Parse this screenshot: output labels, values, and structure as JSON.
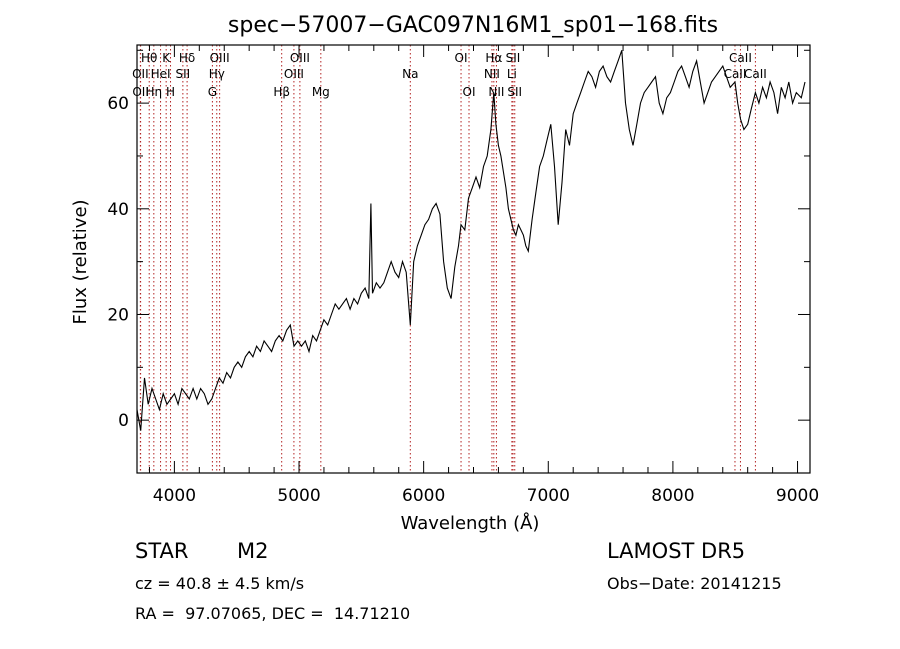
{
  "chart_data": {
    "type": "line",
    "title": "spec−57007−GAC097N16M1_sp01−168.fits",
    "xlabel": "Wavelength (Å)",
    "ylabel": "Flux (relative)",
    "xlim": [
      3700,
      9100
    ],
    "ylim": [
      -10,
      71
    ],
    "xticks": [
      4000,
      5000,
      6000,
      7000,
      8000,
      9000
    ],
    "yticks": [
      0,
      20,
      40,
      60
    ],
    "grid": false,
    "line_color": "#000000",
    "marker_color": "#b22222",
    "series": [
      {
        "x": [
          3700,
          3730,
          3760,
          3790,
          3820,
          3850,
          3880,
          3910,
          3940,
          3970,
          4000,
          4030,
          4060,
          4090,
          4120,
          4150,
          4180,
          4210,
          4240,
          4270,
          4300,
          4330,
          4360,
          4390,
          4420,
          4450,
          4480,
          4510,
          4540,
          4570,
          4600,
          4630,
          4660,
          4690,
          4720,
          4750,
          4780,
          4810,
          4840,
          4870,
          4900,
          4930,
          4960,
          4990,
          5020,
          5050,
          5080,
          5110,
          5140,
          5170,
          5200,
          5230,
          5260,
          5290,
          5320,
          5350,
          5380,
          5410,
          5440,
          5470,
          5500,
          5530,
          5560,
          5577,
          5590,
          5620,
          5650,
          5680,
          5710,
          5740,
          5770,
          5800,
          5830,
          5860,
          5893,
          5920,
          5950,
          5980,
          6010,
          6040,
          6070,
          6100,
          6130,
          6160,
          6190,
          6220,
          6250,
          6280,
          6300,
          6330,
          6360,
          6390,
          6420,
          6450,
          6480,
          6510,
          6540,
          6563,
          6580,
          6600,
          6620,
          6640,
          6660,
          6680,
          6700,
          6720,
          6740,
          6760,
          6780,
          6800,
          6820,
          6840,
          6870,
          6900,
          6930,
          6960,
          6990,
          7020,
          7050,
          7080,
          7110,
          7140,
          7170,
          7200,
          7230,
          7260,
          7290,
          7320,
          7350,
          7380,
          7410,
          7440,
          7470,
          7500,
          7530,
          7560,
          7590,
          7620,
          7650,
          7680,
          7710,
          7740,
          7770,
          7800,
          7830,
          7860,
          7890,
          7920,
          7950,
          7980,
          8010,
          8040,
          8070,
          8100,
          8130,
          8160,
          8190,
          8220,
          8250,
          8280,
          8310,
          8340,
          8370,
          8400,
          8430,
          8460,
          8498,
          8520,
          8542,
          8570,
          8600,
          8630,
          8662,
          8690,
          8720,
          8750,
          8780,
          8810,
          8840,
          8870,
          8900,
          8930,
          8960,
          8990,
          9030,
          9060
        ],
        "y": [
          2,
          -2,
          8,
          3,
          6,
          4,
          2,
          5,
          3,
          4,
          5,
          3,
          6,
          5,
          4,
          6,
          4,
          6,
          5,
          3,
          4,
          6,
          8,
          7,
          9,
          8,
          10,
          11,
          10,
          12,
          13,
          12,
          14,
          13,
          15,
          14,
          13,
          15,
          16,
          15,
          17,
          18,
          14,
          15,
          14,
          15,
          13,
          16,
          15,
          17,
          19,
          18,
          20,
          22,
          21,
          22,
          23,
          21,
          23,
          22,
          24,
          25,
          23,
          41,
          24,
          26,
          25,
          26,
          28,
          30,
          28,
          27,
          30,
          28,
          18,
          30,
          33,
          35,
          37,
          38,
          40,
          41,
          39,
          30,
          25,
          23,
          29,
          33,
          37,
          36,
          42,
          44,
          46,
          44,
          48,
          50,
          55,
          62,
          56,
          52,
          50,
          47,
          44,
          40,
          38,
          36,
          35,
          37,
          36,
          35,
          33,
          32,
          38,
          43,
          48,
          50,
          53,
          56,
          48,
          37,
          45,
          55,
          52,
          58,
          60,
          62,
          64,
          66,
          65,
          63,
          66,
          67,
          65,
          64,
          66,
          68,
          70,
          60,
          55,
          52,
          56,
          60,
          62,
          63,
          64,
          65,
          60,
          58,
          61,
          62,
          64,
          66,
          67,
          65,
          63,
          66,
          68,
          64,
          60,
          62,
          64,
          65,
          66,
          67,
          65,
          63,
          64,
          60,
          57,
          55,
          56,
          59,
          62,
          60,
          63,
          61,
          64,
          62,
          58,
          63,
          61,
          64,
          60,
          62,
          61,
          64
        ]
      }
    ],
    "lines": [
      {
        "label": "Hθ",
        "x": 3798,
        "row": 1
      },
      {
        "label": "OII",
        "x": 3727,
        "row": 2
      },
      {
        "label": "OII",
        "x": 3729,
        "row": 3
      },
      {
        "label": "K",
        "x": 3934,
        "row": 1
      },
      {
        "label": "HeI",
        "x": 3889,
        "row": 2
      },
      {
        "label": "Hη",
        "x": 3835,
        "row": 3
      },
      {
        "label": "H",
        "x": 3969,
        "row": 3
      },
      {
        "label": "Hδ",
        "x": 4102,
        "row": 1
      },
      {
        "label": "SII",
        "x": 4068,
        "row": 2
      },
      {
        "label": "OIII",
        "x": 4363,
        "row": 1
      },
      {
        "label": "Hγ",
        "x": 4340,
        "row": 2
      },
      {
        "label": "G",
        "x": 4305,
        "row": 3
      },
      {
        "label": "OIII",
        "x": 5007,
        "row": 1
      },
      {
        "label": "OIII",
        "x": 4959,
        "row": 2
      },
      {
        "label": "Hβ",
        "x": 4861,
        "row": 3
      },
      {
        "label": "Mg",
        "x": 5175,
        "row": 3
      },
      {
        "label": "Na",
        "x": 5893,
        "row": 2
      },
      {
        "label": "OI",
        "x": 6300,
        "row": 1
      },
      {
        "label": "OI",
        "x": 6364,
        "row": 3
      },
      {
        "label": "Hα",
        "x": 6563,
        "row": 1
      },
      {
        "label": "NII",
        "x": 6548,
        "row": 2
      },
      {
        "label": "NII",
        "x": 6584,
        "row": 3
      },
      {
        "label": "SII",
        "x": 6717,
        "row": 1
      },
      {
        "label": "Li",
        "x": 6708,
        "row": 2
      },
      {
        "label": "SII",
        "x": 6731,
        "row": 3
      },
      {
        "label": "CaII",
        "x": 8542,
        "row": 1
      },
      {
        "label": "CaII",
        "x": 8498,
        "row": 2
      },
      {
        "label": "CaII",
        "x": 8662,
        "row": 2
      }
    ]
  },
  "info": {
    "class_label": "STAR",
    "subclass": "M2",
    "survey": "LAMOST DR5",
    "cz": "cz = 40.8 ± 4.5 km/s",
    "obs_date": "Obs−Date: 20141215",
    "coords": "RA =  97.07065, DEC =  14.71210"
  }
}
